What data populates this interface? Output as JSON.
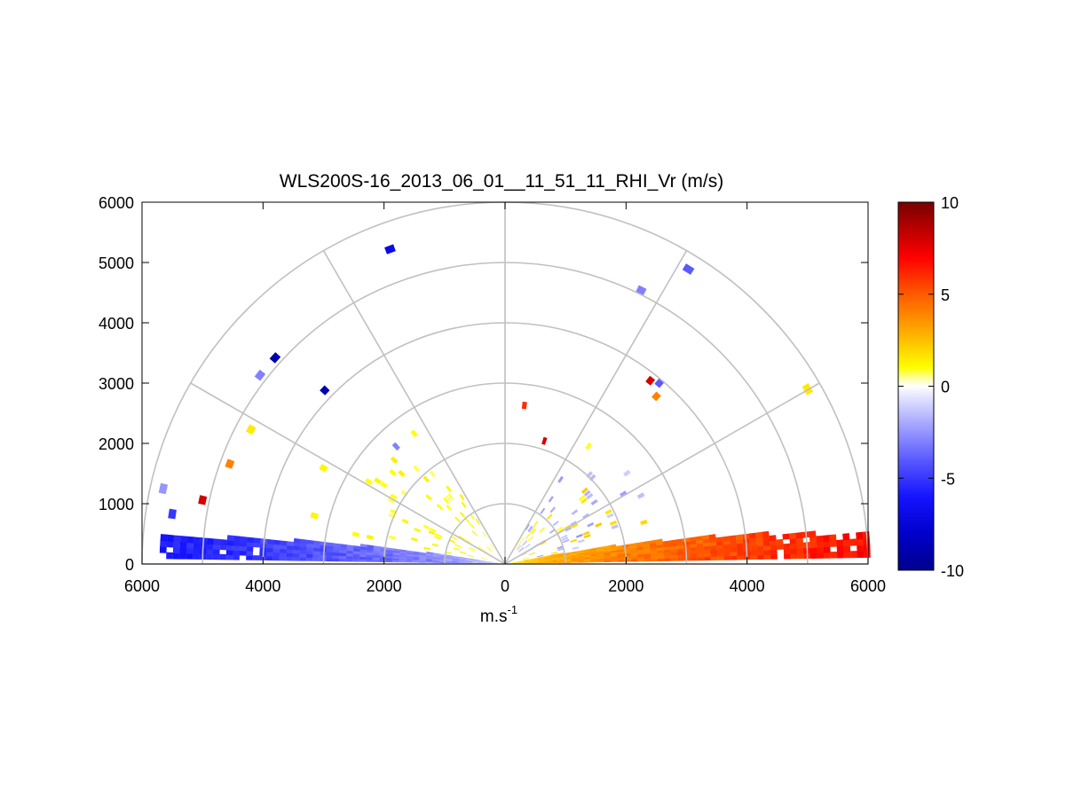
{
  "chart_data": {
    "type": "heatmap",
    "subtype": "polar-rhi",
    "title": "WLS200S-16_2013_06_01__11_51_11_RHI_Vr (m/s)",
    "xlabel": "m.s",
    "xlabel_superscript": "-1",
    "xlim": [
      -6000,
      6000
    ],
    "ylim": [
      0,
      6000
    ],
    "x_ticks": [
      -6000,
      -4000,
      -2000,
      0,
      2000,
      4000,
      6000
    ],
    "x_tick_labels": [
      "6000",
      "4000",
      "2000",
      "0",
      "2000",
      "4000",
      "6000"
    ],
    "y_ticks": [
      0,
      1000,
      2000,
      3000,
      4000,
      5000,
      6000
    ],
    "y_tick_labels": [
      "0",
      "1000",
      "2000",
      "3000",
      "4000",
      "5000",
      "6000"
    ],
    "polar_grid": {
      "radii": [
        1000,
        2000,
        3000,
        4000,
        5000,
        6000
      ],
      "spokes_deg": [
        0,
        30,
        60,
        90,
        120,
        150,
        180
      ]
    },
    "colorbar": {
      "min": -10,
      "max": 10,
      "ticks": [
        10,
        5,
        0,
        -5,
        -10
      ],
      "tick_labels": [
        "10",
        "5",
        "0",
        "-5",
        "-10"
      ],
      "colormap": [
        [
          -10,
          "#00008c"
        ],
        [
          -8,
          "#0000cc"
        ],
        [
          -6,
          "#1414ff"
        ],
        [
          -4,
          "#5a5aff"
        ],
        [
          -2,
          "#a8a8ff"
        ],
        [
          -0.4,
          "#ececff"
        ],
        [
          0,
          "#ffffff"
        ],
        [
          0.4,
          "#ffffaa"
        ],
        [
          1,
          "#ffff00"
        ],
        [
          3,
          "#ffaa00"
        ],
        [
          5,
          "#ff5a00"
        ],
        [
          7,
          "#ff0000"
        ],
        [
          10,
          "#780000"
        ]
      ]
    },
    "series": [
      {
        "name": "left low-elevation band (radial velocity, m/s)",
        "elev_min_deg": 1,
        "elev_max_deg": 9,
        "r_min": 100,
        "r_max": 5650,
        "v_near": -1.5,
        "v_far": -6.0
      },
      {
        "name": "right low-elevation band (radial velocity, m/s)",
        "elev_min_deg": 1,
        "elev_max_deg": 11,
        "r_min": 100,
        "r_max": 6000,
        "v_near": 2.0,
        "v_far": 7.0
      },
      {
        "name": "near-range elevated returns (m/s)",
        "elev_min_deg": 12,
        "elev_max_deg": 60,
        "r_min": 300,
        "r_max": 2700,
        "v_near": 0.8,
        "v_far": -2.5
      }
    ],
    "isolated_cells": [
      {
        "x": -1900,
        "y": 5220,
        "v": -7
      },
      {
        "x": -3800,
        "y": 3420,
        "v": -9
      },
      {
        "x": -4050,
        "y": 3130,
        "v": -3
      },
      {
        "x": -2980,
        "y": 2880,
        "v": -9
      },
      {
        "x": -4200,
        "y": 2230,
        "v": 1.5
      },
      {
        "x": -4550,
        "y": 1660,
        "v": 4
      },
      {
        "x": -3000,
        "y": 1590,
        "v": 1.2
      },
      {
        "x": -1800,
        "y": 1950,
        "v": -3
      },
      {
        "x": -5000,
        "y": 1060,
        "v": 8
      },
      {
        "x": -5650,
        "y": 1250,
        "v": -2.5
      },
      {
        "x": -5500,
        "y": 830,
        "v": -5
      },
      {
        "x": -3150,
        "y": 800,
        "v": 1.2
      },
      {
        "x": 2250,
        "y": 4540,
        "v": -3
      },
      {
        "x": 3030,
        "y": 4890,
        "v": -4
      },
      {
        "x": 2400,
        "y": 3040,
        "v": 8
      },
      {
        "x": 2550,
        "y": 3000,
        "v": -4
      },
      {
        "x": 2500,
        "y": 2780,
        "v": 4
      },
      {
        "x": 5000,
        "y": 2900,
        "v": 1.5
      },
      {
        "x": 320,
        "y": 2630,
        "v": 6
      },
      {
        "x": 650,
        "y": 2040,
        "v": 8
      }
    ]
  }
}
